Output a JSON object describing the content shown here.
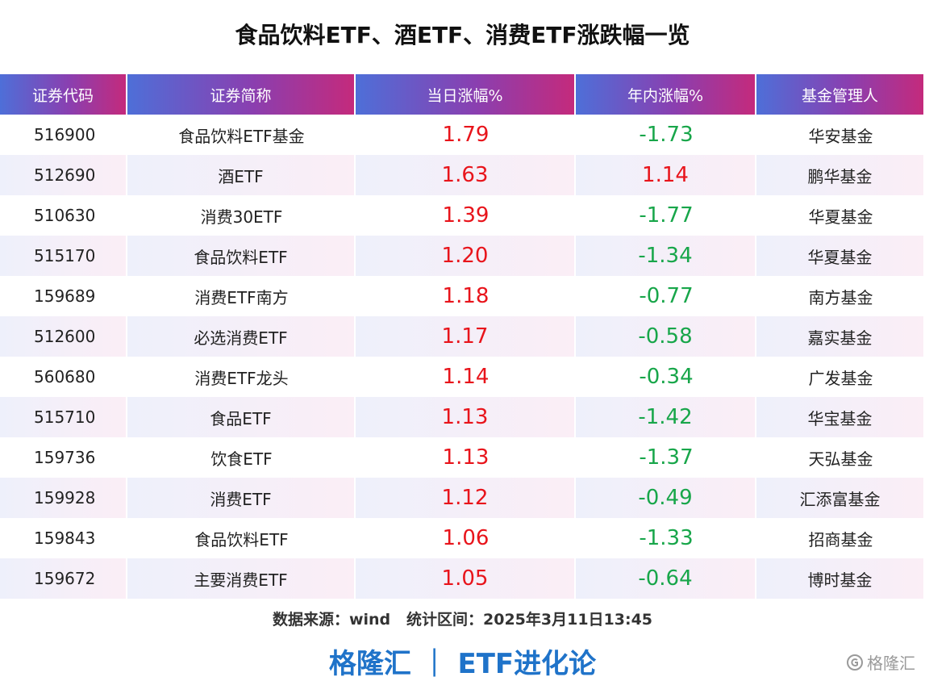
{
  "header": {
    "title": "食品饮料ETF、酒ETF、消费ETF涨跌幅一览"
  },
  "table": {
    "headers": [
      "证券代码",
      "证券简称",
      "当日涨幅%",
      "年内涨幅%",
      "基金管理人"
    ],
    "rows": [
      [
        "516900",
        "食品饮料ETF基金",
        "1.79",
        "-1.73",
        "华安基金"
      ],
      [
        "512690",
        "酒ETF",
        "1.63",
        "1.14",
        "鹏华基金"
      ],
      [
        "510630",
        "消费30ETF",
        "1.39",
        "-1.77",
        "华夏基金"
      ],
      [
        "515170",
        "食品饮料ETF",
        "1.20",
        "-1.34",
        "华夏基金"
      ],
      [
        "159689",
        "消费ETF南方",
        "1.18",
        "-0.77",
        "南方基金"
      ],
      [
        "512600",
        "必选消费ETF",
        "1.17",
        "-0.58",
        "嘉实基金"
      ],
      [
        "560680",
        "消费ETF龙头",
        "1.14",
        "-0.34",
        "广发基金"
      ],
      [
        "515710",
        "食品ETF",
        "1.13",
        "-1.42",
        "华宝基金"
      ],
      [
        "159736",
        "饮食ETF",
        "1.13",
        "-1.37",
        "天弘基金"
      ],
      [
        "159928",
        "消费ETF",
        "1.12",
        "-0.49",
        "汇添富基金"
      ],
      [
        "159843",
        "食品饮料ETF",
        "1.06",
        "-1.33",
        "招商基金"
      ],
      [
        "159672",
        "主要消费ETF",
        "1.05",
        "-0.64",
        "博时基金"
      ]
    ]
  },
  "footer": {
    "source": "数据来源：wind   统计区间：2025年3月11日13:45",
    "brand": "格隆汇 ｜ ETF进化论",
    "watermark": "格隆汇"
  }
}
